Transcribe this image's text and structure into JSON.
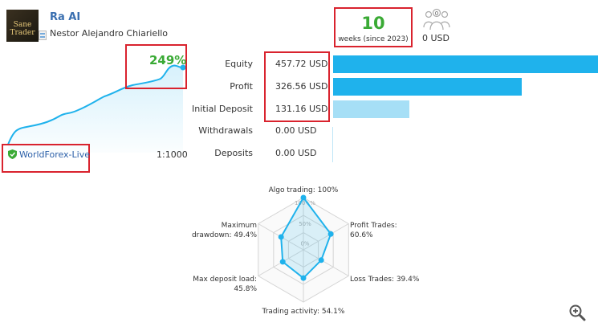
{
  "header": {
    "avatar_text": "Sane Trader",
    "signal_name": "Ra AI",
    "author": "Nestor Alejandro Chiariello"
  },
  "summary": {
    "weeks_value": "10",
    "weeks_label": "weeks (since 2023)",
    "subscribers_count": "0",
    "subscribers_funds": "0 USD"
  },
  "growth": {
    "value": "249%",
    "color": "#3aaa35"
  },
  "broker": {
    "name": "WorldForex-Live",
    "leverage": "1:1000"
  },
  "stats": [
    {
      "label": "Equity",
      "value": "457.72 USD",
      "bar_ratio": 1.0,
      "bar_color": "#1fb2ec"
    },
    {
      "label": "Profit",
      "value": "326.56 USD",
      "bar_ratio": 0.7134,
      "bar_color": "#1fb2ec"
    },
    {
      "label": "Initial Deposit",
      "value": "131.16 USD",
      "bar_ratio": 0.2865,
      "bar_color": "#a6dff6"
    },
    {
      "label": "Withdrawals",
      "value": "0.00 USD",
      "bar_ratio": 0,
      "bar_color": "#a6dff6"
    },
    {
      "label": "Deposits",
      "value": "0.00 USD",
      "bar_ratio": 0,
      "bar_color": "#a6dff6"
    }
  ],
  "radar": {
    "scale_labels": [
      "100+%",
      "50%",
      "0%"
    ],
    "axes": [
      {
        "label": "Algo trading: 100%",
        "value": 1.0
      },
      {
        "label": "Profit Trades:\n60.6%",
        "value": 0.606
      },
      {
        "label": "Loss Trades: 39.4%",
        "value": 0.394
      },
      {
        "label": "Trading activity: 54.1%",
        "value": 0.541
      },
      {
        "label": "Max deposit load:\n45.8%",
        "value": 0.458
      },
      {
        "label": "Maximum\ndrawdown: 49.4%",
        "value": 0.494
      }
    ]
  },
  "icons": {
    "subscribers": "people-icon",
    "broker": "shield-check-icon",
    "zoom": "zoom-icon"
  },
  "colors": {
    "accent": "#1fb2ec",
    "highlight_border": "#d9232e",
    "positive": "#3aaa35"
  }
}
